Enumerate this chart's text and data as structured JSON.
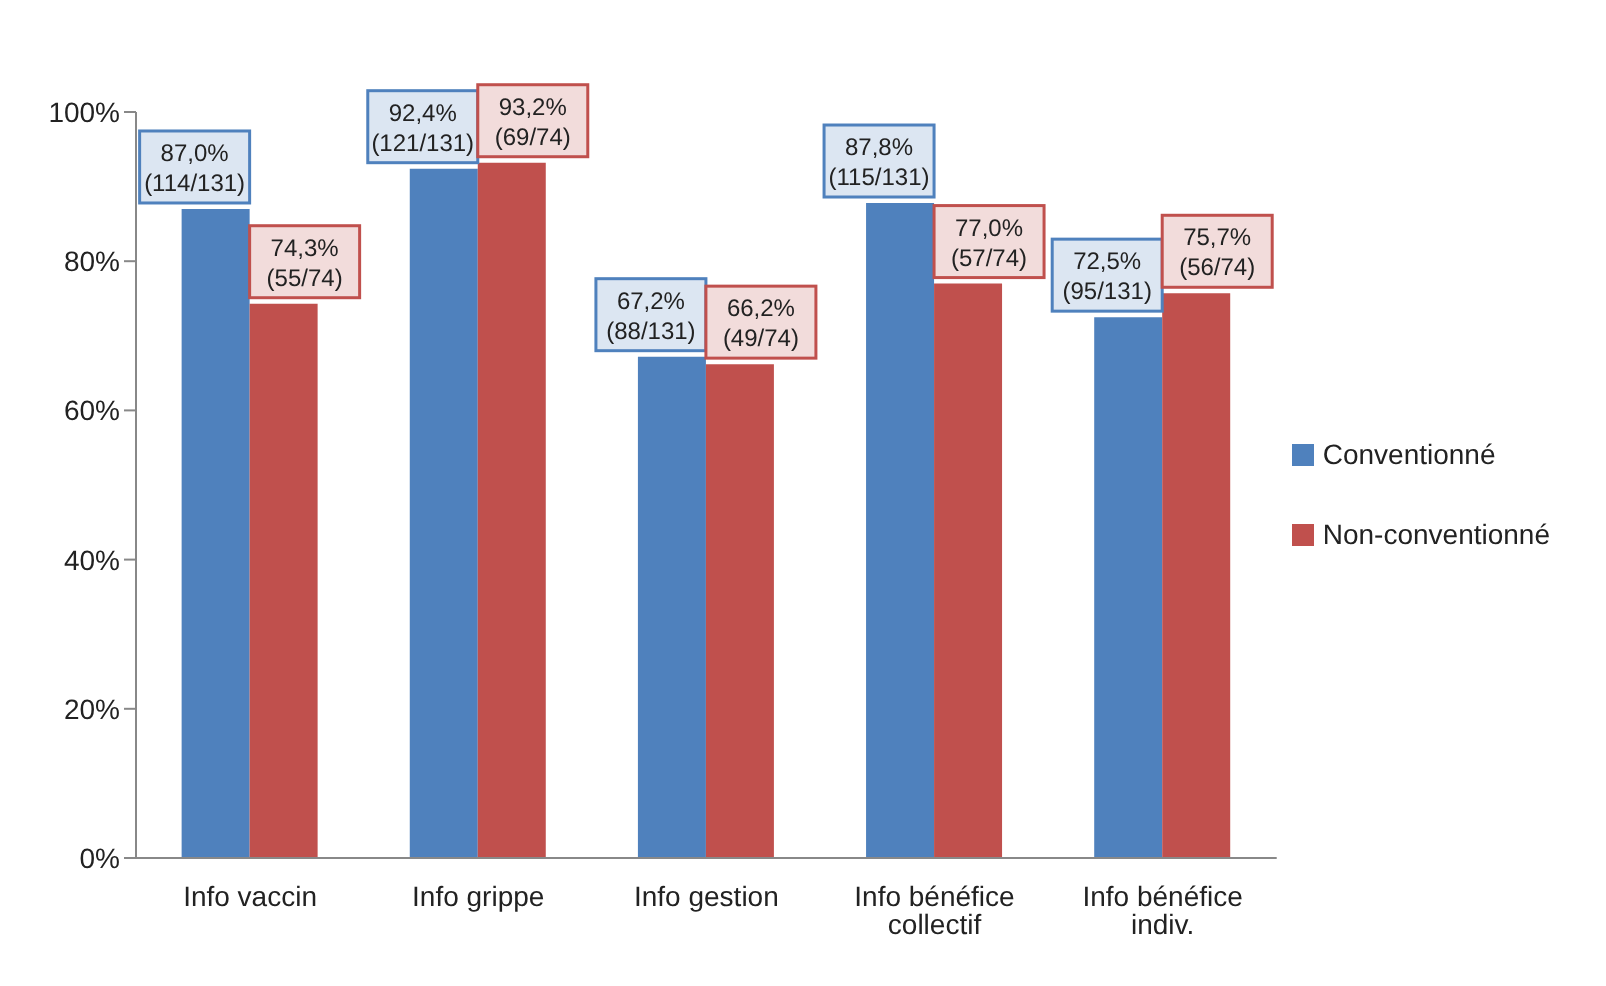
{
  "chart_data": {
    "type": "bar",
    "categories": [
      "Info vaccin",
      "Info grippe",
      "Info gestion",
      "Info bénéfice collectif",
      "Info bénéfice indiv."
    ],
    "series": [
      {
        "name": "Conventionné",
        "color": "#4f81bd",
        "values": [
          87.0,
          92.4,
          67.2,
          87.8,
          72.5
        ],
        "value_labels": [
          "87,0%\n(114/131)",
          "92,4%\n(121/131)",
          "67,2%\n(88/131)",
          "87,8%\n(115/131)",
          "72,5%\n(95/131)"
        ]
      },
      {
        "name": "Non-conventionné",
        "color": "#c0504d",
        "values": [
          74.3,
          93.2,
          66.2,
          77.0,
          75.7
        ],
        "value_labels": [
          "74,3%\n(55/74)",
          "93,2%\n(69/74)",
          "66,2%\n(49/74)",
          "77,0%\n(57/74)",
          "75,7%\n(56/74)"
        ]
      }
    ],
    "ylim": [
      0,
      100
    ],
    "yticks": [
      {
        "value": 0,
        "label": "0%"
      },
      {
        "value": 20,
        "label": "20%"
      },
      {
        "value": 40,
        "label": "40%"
      },
      {
        "value": 60,
        "label": "60%"
      },
      {
        "value": 80,
        "label": "80%"
      },
      {
        "value": 100,
        "label": "100%"
      }
    ],
    "legend": "right"
  }
}
